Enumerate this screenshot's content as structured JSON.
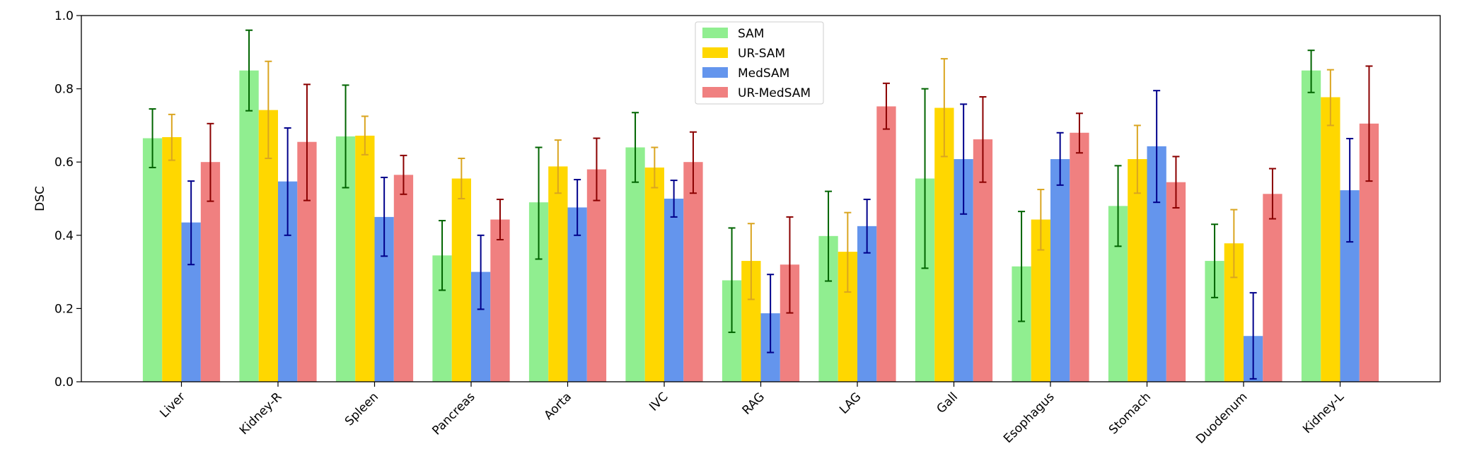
{
  "chart_data": {
    "type": "bar",
    "title": "",
    "xlabel": "",
    "ylabel": "DSC",
    "ylim": [
      0.0,
      1.0
    ],
    "yticks": [
      "0.0",
      "0.2",
      "0.4",
      "0.6",
      "0.8",
      "1.0"
    ],
    "grid": false,
    "legend_position": "top-center",
    "categories": [
      "Liver",
      "Kidney-R",
      "Spleen",
      "Pancreas",
      "Aorta",
      "IVC",
      "RAG",
      "LAG",
      "Gall",
      "Esophagus",
      "Stomach",
      "Duodenum",
      "Kidney-L"
    ],
    "series": [
      {
        "name": "SAM",
        "color": "#90ee90",
        "error_color": "#006400",
        "values": [
          0.665,
          0.85,
          0.67,
          0.345,
          0.49,
          0.64,
          0.277,
          0.398,
          0.555,
          0.315,
          0.48,
          0.33,
          0.85
        ],
        "err_low": [
          0.585,
          0.74,
          0.53,
          0.25,
          0.335,
          0.545,
          0.135,
          0.275,
          0.31,
          0.165,
          0.37,
          0.23,
          0.79
        ],
        "err_high": [
          0.745,
          0.96,
          0.81,
          0.44,
          0.64,
          0.735,
          0.42,
          0.52,
          0.8,
          0.465,
          0.59,
          0.43,
          0.905
        ]
      },
      {
        "name": "UR-SAM",
        "color": "#ffd700",
        "error_color": "#daa520",
        "values": [
          0.668,
          0.742,
          0.672,
          0.555,
          0.588,
          0.585,
          0.33,
          0.355,
          0.748,
          0.443,
          0.608,
          0.378,
          0.777
        ],
        "err_low": [
          0.605,
          0.61,
          0.62,
          0.5,
          0.515,
          0.53,
          0.225,
          0.245,
          0.615,
          0.36,
          0.515,
          0.285,
          0.7
        ],
        "err_high": [
          0.73,
          0.875,
          0.725,
          0.61,
          0.66,
          0.64,
          0.432,
          0.462,
          0.882,
          0.525,
          0.7,
          0.47,
          0.852
        ]
      },
      {
        "name": "MedSAM",
        "color": "#6495ed",
        "error_color": "#00008b",
        "values": [
          0.435,
          0.547,
          0.45,
          0.3,
          0.476,
          0.5,
          0.187,
          0.425,
          0.608,
          0.608,
          0.643,
          0.125,
          0.523
        ],
        "err_low": [
          0.32,
          0.4,
          0.343,
          0.198,
          0.4,
          0.45,
          0.08,
          0.352,
          0.458,
          0.537,
          0.49,
          0.008,
          0.382
        ],
        "err_high": [
          0.548,
          0.693,
          0.558,
          0.4,
          0.552,
          0.55,
          0.293,
          0.498,
          0.758,
          0.68,
          0.795,
          0.243,
          0.664
        ]
      },
      {
        "name": "UR-MedSAM",
        "color": "#f08080",
        "error_color": "#8b0000",
        "values": [
          0.6,
          0.655,
          0.565,
          0.443,
          0.58,
          0.6,
          0.32,
          0.752,
          0.662,
          0.68,
          0.545,
          0.513,
          0.705
        ],
        "err_low": [
          0.493,
          0.495,
          0.512,
          0.388,
          0.495,
          0.515,
          0.188,
          0.69,
          0.545,
          0.625,
          0.475,
          0.445,
          0.548
        ],
        "err_high": [
          0.705,
          0.812,
          0.618,
          0.498,
          0.665,
          0.682,
          0.45,
          0.815,
          0.778,
          0.733,
          0.615,
          0.582,
          0.862
        ]
      }
    ]
  }
}
